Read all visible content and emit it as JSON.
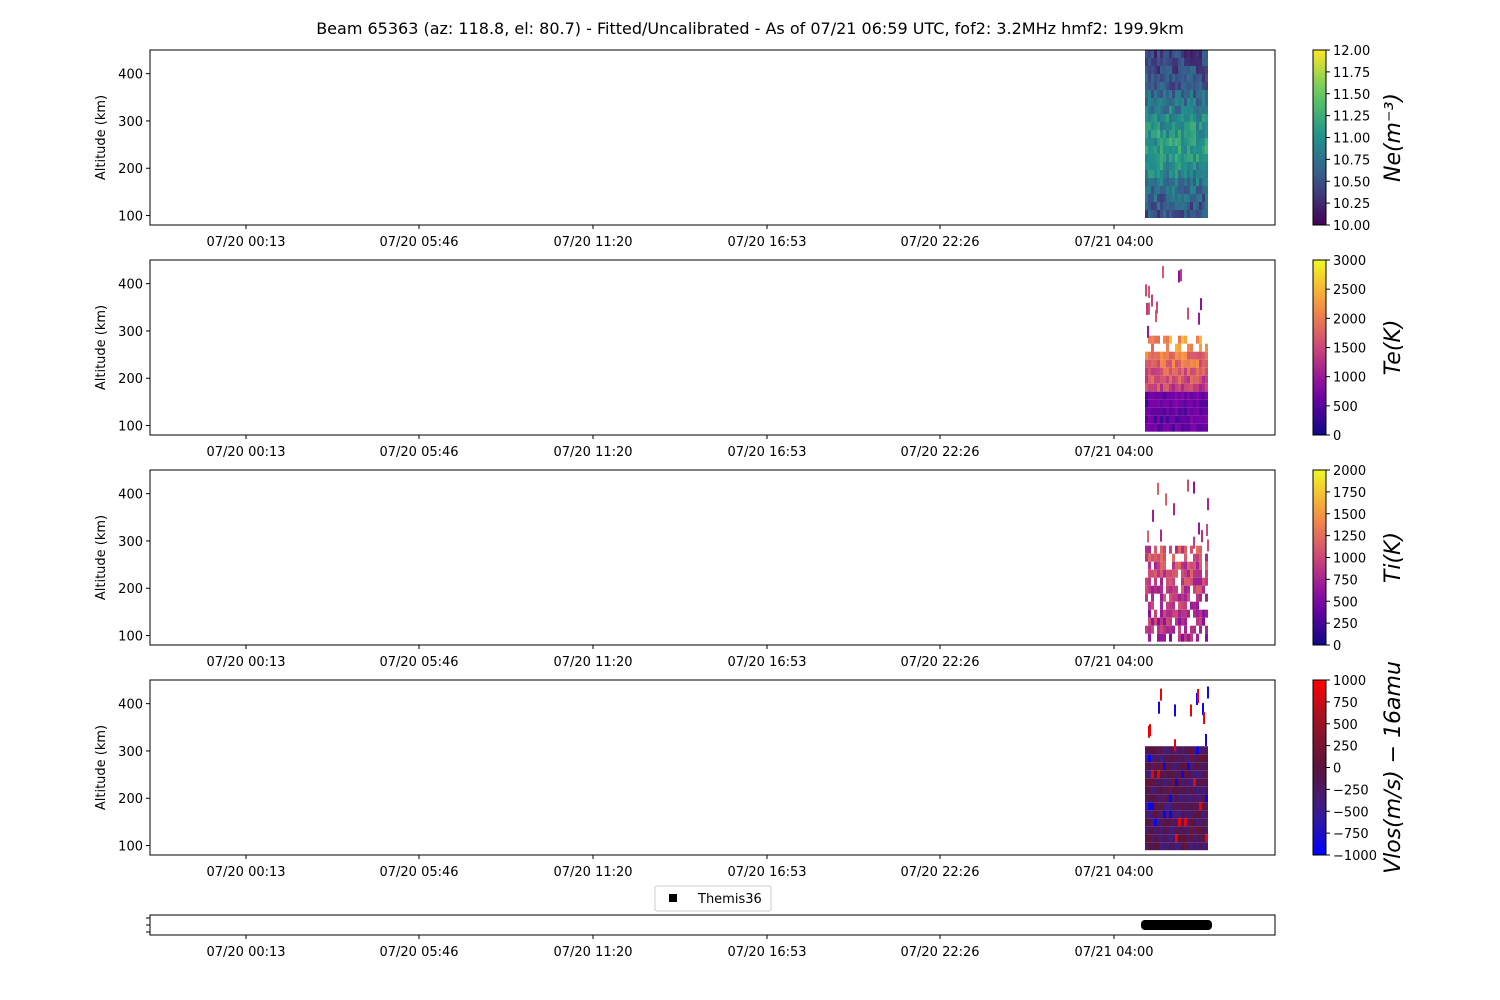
{
  "title": "Beam 65363 (az: 118.8, el: 80.7) - Fitted/Uncalibrated - As of 07/21 06:59 UTC, fof2: 3.2MHz  hmf2: 199.9km",
  "x_tick_labels": [
    "07/20 00:13",
    "07/20 05:46",
    "07/20 11:20",
    "07/20 16:53",
    "07/20 22:26",
    "07/21 04:00"
  ],
  "chart_data": [
    {
      "type": "heatmap",
      "ylabel": "Altitude (km)",
      "yticks": [
        100,
        200,
        300,
        400
      ],
      "ylim": [
        80,
        450
      ],
      "colorbar": {
        "label": "Ne(m^{-3})",
        "label_display": "Ne(m⁻³)",
        "range": [
          10.0,
          12.0
        ],
        "ticks": [
          "10.00",
          "10.25",
          "10.50",
          "10.75",
          "11.00",
          "11.25",
          "11.50",
          "11.75",
          "12.00"
        ],
        "colormap": "viridis"
      },
      "data_extent": {
        "alt_min": 100,
        "alt_max": 450
      }
    },
    {
      "type": "heatmap",
      "ylabel": "Altitude (km)",
      "yticks": [
        100,
        200,
        300,
        400
      ],
      "ylim": [
        80,
        450
      ],
      "colorbar": {
        "label": "Te(K)",
        "label_display": "Te(K)",
        "range": [
          0,
          3000
        ],
        "ticks": [
          "0",
          "500",
          "1000",
          "1500",
          "2000",
          "2500",
          "3000"
        ],
        "colormap": "plasma"
      },
      "data_extent": {
        "alt_min": 100,
        "alt_max": 290
      }
    },
    {
      "type": "heatmap",
      "ylabel": "Altitude (km)",
      "yticks": [
        100,
        200,
        300,
        400
      ],
      "ylim": [
        80,
        450
      ],
      "colorbar": {
        "label": "Ti(K)",
        "label_display": "Ti(K)",
        "range": [
          0,
          2000
        ],
        "ticks": [
          "0",
          "250",
          "500",
          "750",
          "1000",
          "1250",
          "1500",
          "1750",
          "2000"
        ],
        "colormap": "plasma"
      },
      "data_extent": {
        "alt_min": 100,
        "alt_max": 290
      }
    },
    {
      "type": "heatmap",
      "ylabel": "Altitude (km)",
      "yticks": [
        100,
        200,
        300,
        400
      ],
      "ylim": [
        80,
        450
      ],
      "colorbar": {
        "label": "Vlos(m/s) - 16amu",
        "label_display": "Vlos(m/s) − 16amu",
        "range": [
          -1000,
          1000
        ],
        "ticks": [
          "−1000",
          "−750",
          "−500",
          "−250",
          "0",
          "250",
          "500",
          "750",
          "1000"
        ],
        "colormap": "bwr-dark"
      },
      "data_extent": {
        "alt_min": 100,
        "alt_max": 310
      }
    }
  ],
  "legend": {
    "label": "Themis36",
    "marker": "square",
    "color": "#000000"
  },
  "colors": {
    "axis": "#000000",
    "background": "#ffffff",
    "vlos_neg": "#0000ff",
    "vlos_pos": "#ff0000"
  }
}
